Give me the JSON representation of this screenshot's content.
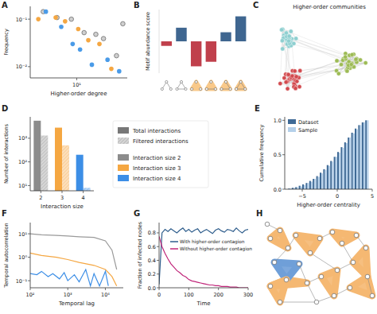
{
  "chart_data": [
    {
      "label": "A",
      "type": "scatter",
      "x_label": "Higher-order degree",
      "y_label": "Frequency",
      "log": true,
      "xlim": [
        3,
        37
      ],
      "ylim": [
        0.0058,
        0.186
      ],
      "xticks": [
        {
          "value": 10,
          "label": "10¹"
        }
      ],
      "yticks": [
        {
          "value": 0.01,
          "label": "10⁻²"
        },
        {
          "value": 0.1,
          "label": "10⁻¹"
        }
      ],
      "series": [
        {
          "color": "#7a7a7a",
          "marker": "open",
          "x": [
            4.2,
            6.0,
            8.7,
            12.1,
            16.4,
            20,
            28,
            33
          ],
          "values": [
            0.144,
            0.108,
            0.1,
            0.052,
            0.048,
            0.039,
            0.017,
            0.08
          ]
        },
        {
          "color": "#f5a742",
          "marker": "circle",
          "x": [
            3.7,
            5.8,
            7.4,
            10.4,
            13.5,
            18,
            24.5
          ],
          "values": [
            0.1,
            0.108,
            0.09,
            0.062,
            0.036,
            0.03,
            0.009
          ]
        },
        {
          "color": "#4a9be8",
          "marker": "circle",
          "x": [
            4.5,
            6.7,
            9.0,
            10.9,
            14.8,
            22.2,
            30
          ],
          "values": [
            0.144,
            0.069,
            0.03,
            0.023,
            0.011,
            0.014,
            0.008
          ]
        }
      ]
    },
    {
      "label": "B",
      "type": "bar",
      "y_label": "Motif abundance score",
      "categories": [
        null,
        null,
        null,
        null,
        null,
        null
      ],
      "values": [
        -0.1,
        0.3,
        -0.55,
        -0.45,
        0.2,
        0.55
      ],
      "colors": [
        "#c0404c",
        "#3f6690",
        "#c0404c",
        "#c0404c",
        "#3f6690",
        "#3f6690"
      ],
      "ylim": [
        -0.7,
        0.7
      ],
      "tick_labels": false
    },
    {
      "label": "C",
      "type": "network",
      "title": "Higher-order communities",
      "colors": [
        "#8ecfd0",
        "#d24a4e",
        "#9dbb55"
      ]
    },
    {
      "label": "D",
      "type": "bar",
      "x_label": "Interaction size",
      "y_label": "Number of interactions",
      "log": "y",
      "categories": [
        "2",
        "3",
        "4"
      ],
      "category_names": [
        "Interaction size 2",
        "Interaction size 3",
        "Interaction size 4"
      ],
      "colors": [
        "#8c8c8c",
        "#f5a742",
        "#3c8ee6"
      ],
      "series": [
        {
          "name": "Total interactions",
          "values": [
            5500,
            2800,
            200
          ]
        },
        {
          "name": "Filtered interactions",
          "values": [
            1300,
            500,
            8
          ]
        }
      ],
      "ylim": [
        6,
        8000
      ],
      "yticks": [
        {
          "value": 10,
          "label": "10¹"
        },
        {
          "value": 100,
          "label": "10²"
        },
        {
          "value": 1000,
          "label": "10³"
        }
      ],
      "legend": "right"
    },
    {
      "label": "E",
      "type": "histogram",
      "x_label": "Higher-order centrality",
      "y_label": "Cumulative frequency",
      "bins": [
        -7,
        -6.5,
        -6,
        -5.5,
        -5,
        -4.5,
        -4,
        -3.5,
        -3,
        -2.5,
        -2,
        -1.5,
        -1,
        -0.5,
        0,
        0.5,
        1,
        1.5,
        2,
        2.5,
        3,
        3.5,
        4,
        4.5
      ],
      "series": [
        {
          "name": "Dataset",
          "color": "#3f6a96",
          "values": [
            0.01,
            0.02,
            0.03,
            0.05,
            0.07,
            0.09,
            0.12,
            0.15,
            0.19,
            0.24,
            0.29,
            0.35,
            0.41,
            0.47,
            0.54,
            0.61,
            0.68,
            0.75,
            0.82,
            0.88,
            0.93,
            0.97,
            1.0
          ]
        },
        {
          "name": "Sample",
          "color": "#b5d0ea",
          "values": [
            0.01,
            0.02,
            0.03,
            0.04,
            0.06,
            0.09,
            0.11,
            0.15,
            0.18,
            0.23,
            0.28,
            0.34,
            0.4,
            0.47,
            0.53,
            0.6,
            0.67,
            0.75,
            0.81,
            0.87,
            0.93,
            0.97,
            1.0
          ]
        }
      ],
      "xlim": [
        -7.5,
        5
      ],
      "ylim": [
        0,
        1.05
      ],
      "xticks": [
        {
          "value": -5,
          "label": "−5"
        },
        0,
        5
      ],
      "yticks": [
        {
          "value": 0,
          "label": "0.0"
        },
        0.5,
        {
          "value": 1,
          "label": "1.0"
        }
      ],
      "legend": "upper left"
    },
    {
      "label": "F",
      "type": "line",
      "x_label": "Temporal lag",
      "y_label": "Temporal autocorrelation",
      "log": true,
      "xlim": [
        100,
        30000
      ],
      "ylim": [
        0.05,
        30
      ],
      "xticks": [
        {
          "value": 100,
          "label": "10²"
        },
        {
          "value": 1000,
          "label": "10³"
        },
        {
          "value": 10000,
          "label": "10⁴"
        }
      ],
      "yticks": [
        {
          "value": 0.1,
          "label": "10⁻¹"
        },
        {
          "value": 1,
          "label": "10⁰"
        },
        {
          "value": 10,
          "label": "10¹"
        }
      ],
      "series": [
        {
          "color": "#9a9a9a",
          "x": [
            100,
            200,
            500,
            1000,
            2000,
            5000,
            10000,
            15000,
            20000
          ],
          "values": [
            10,
            9,
            8.5,
            8,
            7.5,
            7,
            5,
            2,
            0.3
          ]
        },
        {
          "color": "#f5a742",
          "x": [
            100,
            200,
            500,
            1000,
            2000,
            5000,
            10000,
            15000,
            20000
          ],
          "values": [
            1.5,
            1.2,
            1.0,
            0.8,
            0.6,
            0.45,
            0.3,
            0.15,
            0.06
          ]
        },
        {
          "color": "#3c8ee6",
          "x": [
            100,
            150,
            200,
            300,
            400,
            600,
            800,
            1000,
            1500,
            2000,
            3000,
            4000,
            5000,
            7000,
            10000,
            12000
          ],
          "values": [
            0.2,
            0.18,
            0.25,
            0.15,
            0.2,
            0.12,
            0.22,
            0.1,
            0.18,
            0.09,
            0.3,
            0.06,
            0.2,
            0.06,
            0.25,
            0.06
          ]
        }
      ]
    },
    {
      "label": "G",
      "type": "line",
      "x_label": "Time",
      "y_label": "Fraction of infected nodes",
      "x": [
        0,
        10,
        20,
        30,
        40,
        50,
        60,
        70,
        80,
        90,
        100,
        110,
        120,
        130,
        140,
        150,
        160,
        170,
        180,
        190,
        200,
        210,
        220,
        230,
        240,
        250,
        260,
        270,
        280,
        290,
        300
      ],
      "series": [
        {
          "name": "With higher-order contagion",
          "color": "#2e5d8c",
          "values": [
            0.05,
            0.8,
            0.85,
            0.82,
            0.86,
            0.83,
            0.8,
            0.84,
            0.87,
            0.82,
            0.85,
            0.81,
            0.84,
            0.86,
            0.8,
            0.83,
            0.85,
            0.82,
            0.79,
            0.84,
            0.86,
            0.83,
            0.81,
            0.85,
            0.84,
            0.82,
            0.87,
            0.83,
            0.8,
            0.84,
            0.85
          ]
        },
        {
          "name": "Without higher-order contagion",
          "color": "#c0267a",
          "values": [
            0.75,
            0.6,
            0.5,
            0.42,
            0.35,
            0.3,
            0.25,
            0.22,
            0.18,
            0.16,
            0.12,
            0.1,
            0.09,
            0.08,
            0.07,
            0.06,
            0.05,
            0.04,
            0.04,
            0.03,
            0.03,
            0.02,
            0.02,
            0.02,
            0.01,
            0.01,
            0.01,
            0.0,
            0.0,
            0.0,
            0.0
          ]
        }
      ],
      "xlim": [
        0,
        300
      ],
      "ylim": [
        0,
        0.95
      ],
      "xticks": [
        0,
        100,
        200,
        300
      ],
      "yticks": [
        {
          "value": 0,
          "label": "0.0"
        },
        0.2,
        0.4,
        0.6,
        0.8
      ],
      "legend": "center"
    },
    {
      "label": "H",
      "type": "hypergraph"
    }
  ]
}
